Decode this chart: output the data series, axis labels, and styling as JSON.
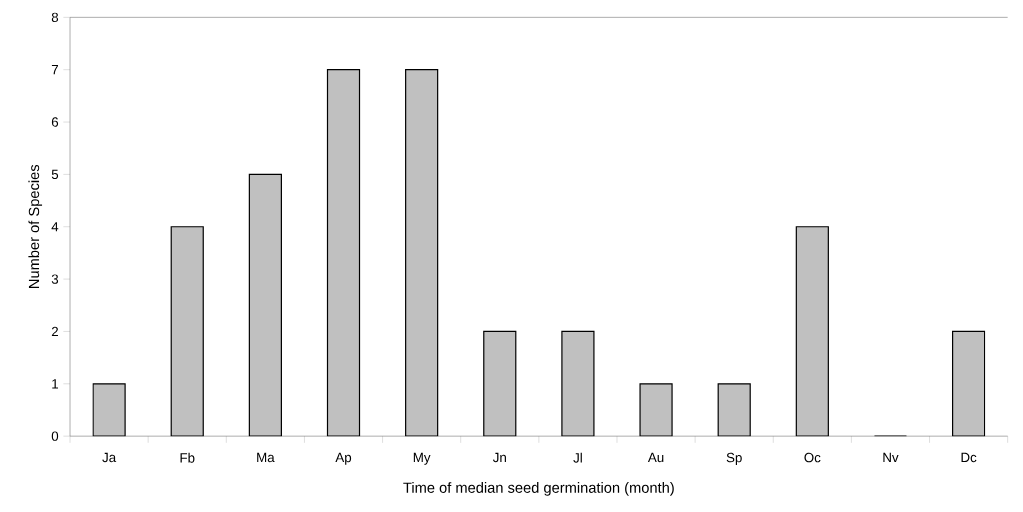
{
  "chart_data": {
    "type": "bar",
    "xlabel": "Time of median seed germination (month)",
    "ylabel": "Number of Species",
    "categories": [
      "Ja",
      "Fb",
      "Ma",
      "Ap",
      "My",
      "Jn",
      "Jl",
      "Au",
      "Sp",
      "Oc",
      "Nv",
      "Dc"
    ],
    "values": [
      1,
      4,
      5,
      7,
      7,
      2,
      2,
      1,
      1,
      4,
      0,
      2
    ],
    "color": "#c0c0c0",
    "ylim": [
      0,
      8
    ],
    "yticks": [
      0,
      1,
      2,
      3,
      4,
      5,
      6,
      7,
      8
    ],
    "grid": false
  }
}
